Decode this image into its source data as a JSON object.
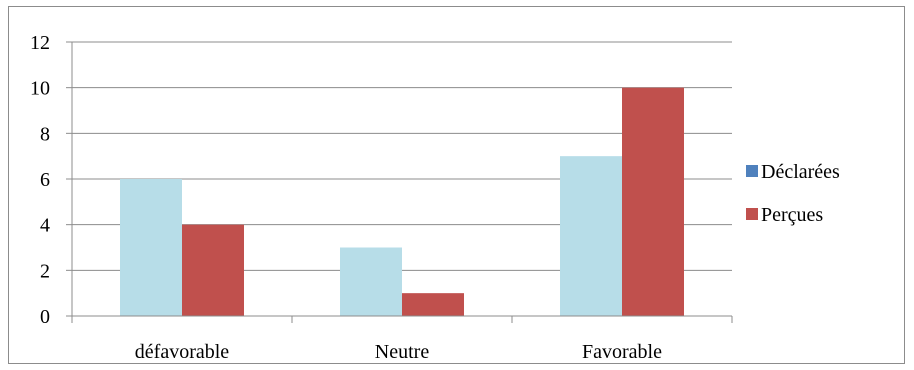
{
  "chart_data": {
    "type": "bar",
    "categories": [
      "défavorable",
      "Neutre",
      "Favorable"
    ],
    "series": [
      {
        "name": "Déclarées",
        "values": [
          6,
          3,
          7
        ],
        "color": "#b7dde8",
        "legend_color": "#4f81bd"
      },
      {
        "name": "Perçues",
        "values": [
          4,
          1,
          10
        ],
        "color": "#c0504d",
        "legend_color": "#c0504d"
      }
    ],
    "y_ticks": [
      0,
      2,
      4,
      6,
      8,
      10,
      12
    ],
    "ylim": [
      0,
      12
    ],
    "grid": true,
    "legend_position": "right"
  }
}
